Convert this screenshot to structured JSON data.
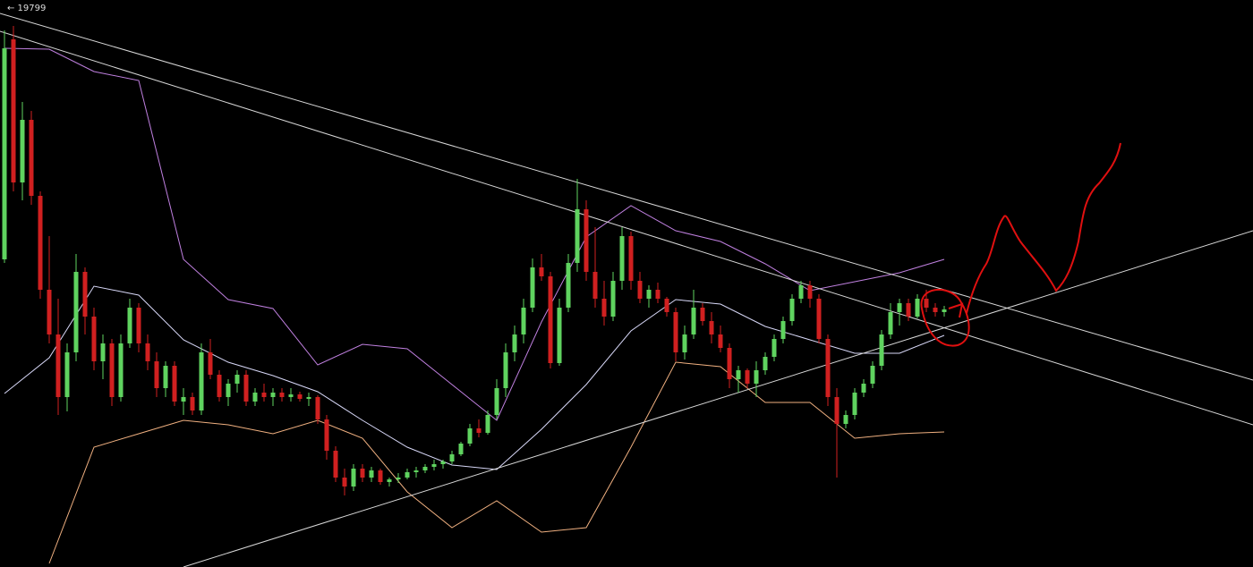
{
  "chart_data": {
    "type": "candlestick",
    "label": "← 19799",
    "ylim": [
      0,
      634
    ],
    "up_color": "#5fd35f",
    "down_color": "#d02020",
    "candles": [
      [
        344,
        600,
        340,
        580
      ],
      [
        590,
        605,
        420,
        430
      ],
      [
        430,
        520,
        410,
        500
      ],
      [
        500,
        510,
        405,
        415
      ],
      [
        415,
        420,
        300,
        310
      ],
      [
        310,
        370,
        250,
        260
      ],
      [
        260,
        300,
        170,
        190
      ],
      [
        190,
        250,
        174,
        240
      ],
      [
        240,
        350,
        230,
        330
      ],
      [
        330,
        335,
        260,
        280
      ],
      [
        280,
        290,
        220,
        230
      ],
      [
        230,
        260,
        210,
        250
      ],
      [
        250,
        255,
        180,
        190
      ],
      [
        190,
        260,
        185,
        250
      ],
      [
        250,
        300,
        245,
        290
      ],
      [
        290,
        295,
        240,
        250
      ],
      [
        250,
        260,
        220,
        230
      ],
      [
        230,
        240,
        190,
        200
      ],
      [
        200,
        230,
        190,
        225
      ],
      [
        225,
        230,
        180,
        185
      ],
      [
        185,
        200,
        170,
        190
      ],
      [
        190,
        195,
        170,
        175
      ],
      [
        175,
        250,
        170,
        240
      ],
      [
        240,
        255,
        210,
        215
      ],
      [
        215,
        220,
        185,
        190
      ],
      [
        190,
        210,
        180,
        205
      ],
      [
        205,
        220,
        195,
        215
      ],
      [
        215,
        220,
        180,
        185
      ],
      [
        185,
        200,
        180,
        195
      ],
      [
        195,
        205,
        185,
        190
      ],
      [
        190,
        200,
        180,
        195
      ],
      [
        195,
        200,
        185,
        190
      ],
      [
        190,
        200,
        185,
        193
      ],
      [
        193,
        196,
        185,
        188
      ],
      [
        188,
        195,
        180,
        190
      ],
      [
        190,
        192,
        160,
        165
      ],
      [
        165,
        170,
        120,
        130
      ],
      [
        130,
        135,
        95,
        100
      ],
      [
        100,
        110,
        80,
        90
      ],
      [
        90,
        115,
        85,
        110
      ],
      [
        110,
        115,
        95,
        100
      ],
      [
        100,
        112,
        95,
        108
      ],
      [
        108,
        110,
        92,
        95
      ],
      [
        95,
        100,
        90,
        98
      ],
      [
        98,
        105,
        94,
        100
      ],
      [
        100,
        110,
        98,
        106
      ],
      [
        106,
        112,
        100,
        108
      ],
      [
        108,
        115,
        105,
        112
      ],
      [
        112,
        120,
        108,
        115
      ],
      [
        115,
        120,
        110,
        118
      ],
      [
        118,
        130,
        115,
        126
      ],
      [
        126,
        140,
        124,
        138
      ],
      [
        138,
        160,
        135,
        155
      ],
      [
        155,
        165,
        145,
        150
      ],
      [
        150,
        175,
        148,
        170
      ],
      [
        170,
        210,
        165,
        200
      ],
      [
        200,
        250,
        190,
        240
      ],
      [
        240,
        270,
        230,
        260
      ],
      [
        260,
        300,
        250,
        290
      ],
      [
        290,
        345,
        285,
        335
      ],
      [
        335,
        350,
        320,
        325
      ],
      [
        325,
        330,
        222,
        228
      ],
      [
        228,
        300,
        225,
        290
      ],
      [
        290,
        350,
        285,
        340
      ],
      [
        340,
        434,
        330,
        400
      ],
      [
        400,
        410,
        320,
        330
      ],
      [
        330,
        380,
        290,
        300
      ],
      [
        300,
        320,
        270,
        280
      ],
      [
        280,
        330,
        275,
        320
      ],
      [
        320,
        380,
        310,
        370
      ],
      [
        370,
        375,
        310,
        320
      ],
      [
        320,
        330,
        295,
        300
      ],
      [
        300,
        315,
        290,
        310
      ],
      [
        310,
        318,
        295,
        300
      ],
      [
        300,
        302,
        280,
        285
      ],
      [
        285,
        290,
        230,
        240
      ],
      [
        240,
        270,
        232,
        260
      ],
      [
        260,
        310,
        255,
        290
      ],
      [
        290,
        295,
        270,
        275
      ],
      [
        275,
        285,
        250,
        260
      ],
      [
        260,
        270,
        240,
        245
      ],
      [
        245,
        250,
        200,
        210
      ],
      [
        210,
        225,
        195,
        220
      ],
      [
        220,
        222,
        200,
        205
      ],
      [
        205,
        230,
        190,
        220
      ],
      [
        220,
        240,
        215,
        235
      ],
      [
        235,
        260,
        230,
        255
      ],
      [
        255,
        280,
        250,
        275
      ],
      [
        275,
        305,
        270,
        300
      ],
      [
        300,
        320,
        295,
        315
      ],
      [
        315,
        320,
        290,
        300
      ],
      [
        300,
        305,
        250,
        255
      ],
      [
        255,
        260,
        180,
        190
      ],
      [
        190,
        200,
        100,
        160
      ],
      [
        160,
        175,
        155,
        170
      ],
      [
        170,
        200,
        165,
        195
      ],
      [
        195,
        210,
        190,
        205
      ],
      [
        205,
        230,
        200,
        225
      ],
      [
        225,
        265,
        220,
        260
      ],
      [
        260,
        295,
        255,
        285
      ],
      [
        285,
        300,
        270,
        295
      ],
      [
        295,
        300,
        275,
        280
      ],
      [
        280,
        305,
        278,
        300
      ],
      [
        300,
        310,
        285,
        290
      ],
      [
        290,
        295,
        280,
        285
      ],
      [
        285,
        292,
        280,
        288
      ]
    ],
    "series": [
      {
        "color": "#c080e0",
        "x": [
          0,
          5,
          10,
          15,
          20,
          25,
          30,
          35,
          40,
          45,
          50,
          55,
          60,
          65,
          70,
          75,
          80,
          85,
          90,
          95,
          100,
          105
        ],
        "values": [
          580,
          579,
          554,
          544,
          344,
          299,
          289,
          226,
          249,
          244,
          204,
          164,
          274,
          369,
          404,
          376,
          364,
          339,
          309,
          319,
          329,
          344
        ]
      },
      {
        "color": "#d8d8f8",
        "x": [
          0,
          5,
          10,
          15,
          20,
          25,
          30,
          35,
          40,
          45,
          50,
          55,
          60,
          65,
          70,
          75,
          80,
          85,
          90,
          95,
          100,
          105
        ],
        "values": [
          194,
          234,
          314,
          304,
          254,
          229,
          214,
          196,
          164,
          134,
          114,
          109,
          154,
          204,
          264,
          299,
          294,
          269,
          254,
          239,
          239,
          259
        ]
      },
      {
        "color": "#f0b080",
        "x": [
          0,
          5,
          10,
          15,
          20,
          25,
          30,
          35,
          40,
          45,
          50,
          55,
          60,
          65,
          70,
          75,
          80,
          85,
          90,
          95,
          100,
          105
        ],
        "values": [
          null,
          4,
          134,
          149,
          164,
          159,
          149,
          164,
          144,
          84,
          44,
          74,
          39,
          44,
          134,
          229,
          224,
          184,
          184,
          144,
          149,
          151
        ]
      }
    ]
  }
}
